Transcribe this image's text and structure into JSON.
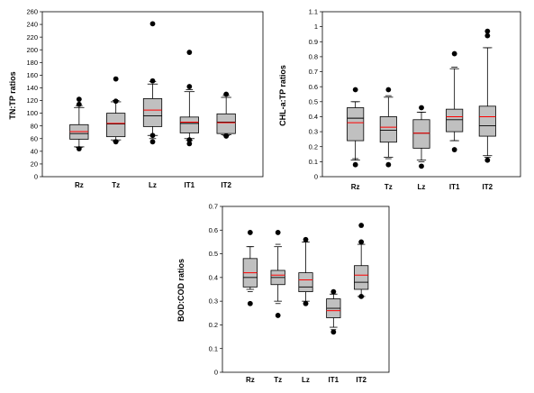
{
  "colors": {
    "box_fill": "#c0c0c0",
    "median": "#000000",
    "mean": "#ff0000",
    "outlier": "#000000",
    "frame": "#000000"
  },
  "chart_data": [
    {
      "type": "box",
      "ylabel": "TN:TP ratios",
      "ylim": [
        0,
        260
      ],
      "yticks": [
        0,
        20,
        40,
        60,
        80,
        100,
        120,
        140,
        160,
        180,
        200,
        220,
        240,
        260
      ],
      "categories": [
        "Rz",
        "Tz",
        "Lz",
        "IT1",
        "IT2"
      ],
      "boxes": [
        {
          "category": "Rz",
          "whisker_low": 47,
          "q1": 59,
          "median": 68,
          "mean": 71,
          "q3": 82,
          "whisker_high": 109,
          "cap_low_extra": 46,
          "cap_high_extra": 112,
          "outliers": [
            44,
            114,
            122
          ]
        },
        {
          "category": "Tz",
          "whisker_low": 58,
          "q1": 63,
          "median": 83,
          "mean": 84,
          "q3": 100,
          "whisker_high": 118,
          "cap_low_extra": 56,
          "cap_high_extra": 120,
          "outliers": [
            55,
            119,
            154
          ]
        },
        {
          "category": "Lz",
          "whisker_low": 65,
          "q1": 79,
          "median": 96,
          "mean": 105,
          "q3": 123,
          "whisker_high": 146,
          "cap_low_extra": 60,
          "cap_high_extra": 150,
          "outliers": [
            55,
            65,
            151,
            241
          ]
        },
        {
          "category": "IT1",
          "whisker_low": 60,
          "q1": 69,
          "median": 84,
          "mean": 86,
          "q3": 94,
          "whisker_high": 134,
          "cap_low_extra": 57,
          "cap_high_extra": 137,
          "outliers": [
            52,
            58,
            142,
            196
          ]
        },
        {
          "category": "IT2",
          "whisker_low": 66,
          "q1": 68,
          "median": 86,
          "mean": 85,
          "q3": 99,
          "whisker_high": 125,
          "cap_low_extra": 65,
          "cap_high_extra": 128,
          "outliers": [
            64,
            130
          ]
        }
      ]
    },
    {
      "type": "box",
      "ylabel": "CHL-a:TP ratios",
      "ylim": [
        0,
        1.1
      ],
      "yticks": [
        0,
        0.1,
        0.2,
        0.3,
        0.4,
        0.5,
        0.6,
        0.7,
        0.8,
        0.9,
        1.0,
        1.1
      ],
      "ytick_labels": [
        "0",
        "0.1",
        "0.2",
        "0.3",
        "0.4",
        "0.5",
        "0.6",
        "0.7",
        "0.8",
        "0.9",
        "1",
        "1.1"
      ],
      "categories": [
        "Rz",
        "Tz",
        "Lz",
        "IT1",
        "IT2"
      ],
      "boxes": [
        {
          "category": "Rz",
          "whisker_low": 0.11,
          "q1": 0.24,
          "median": 0.39,
          "mean": 0.36,
          "q3": 0.46,
          "whisker_high": 0.5,
          "cap_low_extra": 0.12,
          "cap_high_extra": 0.5,
          "outliers": [
            0.08,
            0.58
          ]
        },
        {
          "category": "Tz",
          "whisker_low": 0.13,
          "q1": 0.23,
          "median": 0.31,
          "mean": 0.33,
          "q3": 0.4,
          "whisker_high": 0.53,
          "cap_low_extra": 0.12,
          "cap_high_extra": 0.54,
          "outliers": [
            0.08,
            0.58
          ]
        },
        {
          "category": "Lz",
          "whisker_low": 0.11,
          "q1": 0.19,
          "median": 0.29,
          "mean": 0.29,
          "q3": 0.38,
          "whisker_high": 0.43,
          "cap_low_extra": 0.1,
          "cap_high_extra": 0.43,
          "outliers": [
            0.07,
            0.46
          ]
        },
        {
          "category": "IT1",
          "whisker_low": 0.24,
          "q1": 0.3,
          "median": 0.38,
          "mean": 0.4,
          "q3": 0.45,
          "whisker_high": 0.72,
          "cap_low_extra": 0.24,
          "cap_high_extra": 0.73,
          "outliers": [
            0.18,
            0.82
          ]
        },
        {
          "category": "IT2",
          "whisker_low": 0.14,
          "q1": 0.27,
          "median": 0.34,
          "mean": 0.4,
          "q3": 0.47,
          "whisker_high": 0.86,
          "cap_low_extra": 0.13,
          "cap_high_extra": 0.86,
          "outliers": [
            0.11,
            0.94,
            0.97
          ]
        }
      ]
    },
    {
      "type": "box",
      "ylabel": "BOD:COD ratios",
      "ylim": [
        0,
        0.7
      ],
      "yticks": [
        0,
        0.1,
        0.2,
        0.3,
        0.4,
        0.5,
        0.6,
        0.7
      ],
      "ytick_labels": [
        "0",
        "0.1",
        "0.2",
        "0.3",
        "0.4",
        "0.5",
        "0.6",
        "0.7"
      ],
      "categories": [
        "Rz",
        "Tz",
        "Lz",
        "IT1",
        "IT2"
      ],
      "boxes": [
        {
          "category": "Rz",
          "whisker_low": 0.35,
          "q1": 0.36,
          "median": 0.4,
          "mean": 0.42,
          "q3": 0.48,
          "whisker_high": 0.53,
          "cap_low_extra": 0.34,
          "cap_high_extra": 0.53,
          "outliers": [
            0.29,
            0.59
          ]
        },
        {
          "category": "Tz",
          "whisker_low": 0.3,
          "q1": 0.37,
          "median": 0.4,
          "mean": 0.41,
          "q3": 0.43,
          "whisker_high": 0.53,
          "cap_low_extra": 0.29,
          "cap_high_extra": 0.54,
          "outliers": [
            0.24,
            0.59
          ]
        },
        {
          "category": "Lz",
          "whisker_low": 0.3,
          "q1": 0.34,
          "median": 0.36,
          "mean": 0.39,
          "q3": 0.42,
          "whisker_high": 0.55,
          "cap_low_extra": 0.29,
          "cap_high_extra": 0.55,
          "outliers": [
            0.29,
            0.56
          ]
        },
        {
          "category": "IT1",
          "whisker_low": 0.19,
          "q1": 0.23,
          "median": 0.27,
          "mean": 0.26,
          "q3": 0.31,
          "whisker_high": 0.33,
          "cap_low_extra": 0.18,
          "cap_high_extra": 0.33,
          "outliers": [
            0.17,
            0.34
          ]
        },
        {
          "category": "IT2",
          "whisker_low": 0.32,
          "q1": 0.35,
          "median": 0.38,
          "mean": 0.41,
          "q3": 0.45,
          "whisker_high": 0.54,
          "cap_low_extra": 0.32,
          "cap_high_extra": 0.55,
          "outliers": [
            0.32,
            0.55,
            0.62
          ]
        }
      ]
    }
  ]
}
